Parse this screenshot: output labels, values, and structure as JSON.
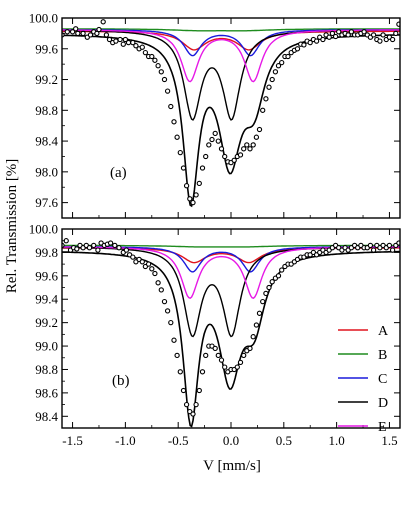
{
  "figure": {
    "ylabel": "Rel. Transmission [%]",
    "xlabel": "V [mm/s]"
  },
  "chart_data": [
    {
      "type": "line",
      "panel_label": "(a)",
      "xlim": [
        -1.6,
        1.6
      ],
      "ylim": [
        97.4,
        100.0
      ],
      "x_ticks": [
        -1.5,
        -1.0,
        -0.5,
        0.0,
        0.5,
        1.0,
        1.5
      ],
      "x_tick_labels": [
        "-1.5",
        "-1.0",
        "-0.5",
        "0.0",
        "0.5",
        "1.0",
        "1.5"
      ],
      "y_ticks": [
        97.6,
        98.0,
        98.4,
        98.8,
        99.2,
        99.6,
        100.0
      ],
      "y_tick_labels": [
        "97.6",
        "98.0",
        "98.4",
        "98.8",
        "99.2",
        "99.6",
        "100.0"
      ],
      "grid": false,
      "series": [
        {
          "name": "A",
          "color": "#e0141e",
          "baseline": 99.83,
          "doublet": {
            "center": -0.09,
            "split": 0.52,
            "depth": 0.23,
            "width": 0.27
          }
        },
        {
          "name": "B",
          "color": "#1f8c1f",
          "baseline": 99.86,
          "doublet": {
            "center": -0.09,
            "split": 0.45,
            "depth": 0.02,
            "width": 0.6
          }
        },
        {
          "name": "C",
          "color": "#1a1adc",
          "baseline": 99.85,
          "doublet": {
            "center": -0.09,
            "split": 0.55,
            "depth": 0.33,
            "width": 0.2
          }
        },
        {
          "name": "D",
          "color": "#000000",
          "baseline": 99.85,
          "doublet": {
            "center": -0.18,
            "split": 0.37,
            "depth": 1.1,
            "width": 0.2
          }
        },
        {
          "name": "E",
          "color": "#e619e6",
          "baseline": 99.85,
          "doublet": {
            "center": -0.09,
            "split": 0.6,
            "depth": 0.66,
            "width": 0.2
          }
        }
      ],
      "fit": {
        "name": "sum",
        "color": "#000000",
        "baseline": 99.8,
        "doublets": [
          {
            "center": -0.38,
            "split": 0,
            "depth": 2.05,
            "width": 0.18
          },
          {
            "center": -0.01,
            "split": 0,
            "depth": 1.55,
            "width": 0.26
          },
          {
            "center": 0.22,
            "split": 0,
            "depth": 0.75,
            "width": 0.24
          }
        ]
      },
      "data_points": [
        [
          -1.6,
          99.78
        ],
        [
          -1.55,
          99.82
        ],
        [
          -1.5,
          99.82
        ],
        [
          -1.47,
          99.86
        ],
        [
          -1.45,
          99.8
        ],
        [
          -1.4,
          99.8
        ],
        [
          -1.36,
          99.75
        ],
        [
          -1.33,
          99.78
        ],
        [
          -1.3,
          99.82
        ],
        [
          -1.27,
          99.8
        ],
        [
          -1.25,
          99.85
        ],
        [
          -1.21,
          99.95
        ],
        [
          -1.18,
          99.78
        ],
        [
          -1.15,
          99.72
        ],
        [
          -1.12,
          99.68
        ],
        [
          -1.09,
          99.7
        ],
        [
          -1.05,
          99.72
        ],
        [
          -1.02,
          99.66
        ],
        [
          -1.0,
          99.72
        ],
        [
          -0.97,
          99.68
        ],
        [
          -0.93,
          99.68
        ],
        [
          -0.9,
          99.64
        ],
        [
          -0.87,
          99.6
        ],
        [
          -0.84,
          99.62
        ],
        [
          -0.81,
          99.55
        ],
        [
          -0.78,
          99.5
        ],
        [
          -0.75,
          99.5
        ],
        [
          -0.72,
          99.45
        ],
        [
          -0.69,
          99.38
        ],
        [
          -0.66,
          99.3
        ],
        [
          -0.63,
          99.2
        ],
        [
          -0.6,
          99.05
        ],
        [
          -0.57,
          98.85
        ],
        [
          -0.54,
          98.65
        ],
        [
          -0.51,
          98.45
        ],
        [
          -0.48,
          98.25
        ],
        [
          -0.45,
          98.05
        ],
        [
          -0.42,
          97.82
        ],
        [
          -0.39,
          97.65
        ],
        [
          -0.36,
          97.6
        ],
        [
          -0.33,
          97.7
        ],
        [
          -0.3,
          97.85
        ],
        [
          -0.27,
          98.05
        ],
        [
          -0.24,
          98.2
        ],
        [
          -0.21,
          98.35
        ],
        [
          -0.18,
          98.42
        ],
        [
          -0.15,
          98.5
        ],
        [
          -0.12,
          98.4
        ],
        [
          -0.09,
          98.3
        ],
        [
          -0.06,
          98.2
        ],
        [
          -0.03,
          98.13
        ],
        [
          0.0,
          98.12
        ],
        [
          0.03,
          98.15
        ],
        [
          0.06,
          98.2
        ],
        [
          0.09,
          98.22
        ],
        [
          0.12,
          98.3
        ],
        [
          0.15,
          98.35
        ],
        [
          0.18,
          98.3
        ],
        [
          0.21,
          98.35
        ],
        [
          0.24,
          98.45
        ],
        [
          0.27,
          98.55
        ],
        [
          0.3,
          98.8
        ],
        [
          0.33,
          98.95
        ],
        [
          0.36,
          99.1
        ],
        [
          0.39,
          99.2
        ],
        [
          0.42,
          99.3
        ],
        [
          0.45,
          99.38
        ],
        [
          0.48,
          99.42
        ],
        [
          0.51,
          99.5
        ],
        [
          0.54,
          99.5
        ],
        [
          0.57,
          99.55
        ],
        [
          0.6,
          99.58
        ],
        [
          0.63,
          99.6
        ],
        [
          0.66,
          99.66
        ],
        [
          0.69,
          99.65
        ],
        [
          0.72,
          99.7
        ],
        [
          0.75,
          99.68
        ],
        [
          0.78,
          99.72
        ],
        [
          0.81,
          99.7
        ],
        [
          0.84,
          99.75
        ],
        [
          0.87,
          99.72
        ],
        [
          0.9,
          99.78
        ],
        [
          0.93,
          99.75
        ],
        [
          0.96,
          99.8
        ],
        [
          0.99,
          99.76
        ],
        [
          1.02,
          99.82
        ],
        [
          1.05,
          99.78
        ],
        [
          1.08,
          99.8
        ],
        [
          1.11,
          99.78
        ],
        [
          1.14,
          99.82
        ],
        [
          1.17,
          99.78
        ],
        [
          1.2,
          99.78
        ],
        [
          1.23,
          99.8
        ],
        [
          1.26,
          99.82
        ],
        [
          1.29,
          99.78
        ],
        [
          1.32,
          99.75
        ],
        [
          1.35,
          99.78
        ],
        [
          1.38,
          99.72
        ],
        [
          1.41,
          99.7
        ],
        [
          1.44,
          99.78
        ],
        [
          1.47,
          99.72
        ],
        [
          1.5,
          99.75
        ],
        [
          1.53,
          99.72
        ],
        [
          1.56,
          99.8
        ],
        [
          1.59,
          99.92
        ]
      ]
    },
    {
      "type": "line",
      "panel_label": "(b)",
      "xlim": [
        -1.6,
        1.6
      ],
      "ylim": [
        98.3,
        100.0
      ],
      "x_ticks": [
        -1.5,
        -1.0,
        -0.5,
        0.0,
        0.5,
        1.0,
        1.5
      ],
      "x_tick_labels": [
        "-1.5",
        "-1.0",
        "-0.5",
        "0.0",
        "0.5",
        "1.0",
        "1.5"
      ],
      "y_ticks": [
        98.4,
        98.6,
        98.8,
        99.0,
        99.2,
        99.4,
        99.6,
        99.8,
        100.0
      ],
      "y_tick_labels": [
        "98.4",
        "98.6",
        "98.8",
        "99.0",
        "99.2",
        "99.4",
        "99.6",
        "99.8",
        "100.0"
      ],
      "grid": false,
      "legend_position": "lower-right",
      "series": [
        {
          "name": "A",
          "color": "#e0141e",
          "baseline": 99.84,
          "doublet": {
            "center": -0.09,
            "split": 0.52,
            "depth": 0.12,
            "width": 0.27
          }
        },
        {
          "name": "B",
          "color": "#1f8c1f",
          "baseline": 99.86,
          "doublet": {
            "center": -0.09,
            "split": 0.45,
            "depth": 0.01,
            "width": 0.6
          }
        },
        {
          "name": "C",
          "color": "#1a1adc",
          "baseline": 99.85,
          "doublet": {
            "center": -0.09,
            "split": 0.55,
            "depth": 0.21,
            "width": 0.2
          }
        },
        {
          "name": "D",
          "color": "#000000",
          "baseline": 99.85,
          "doublet": {
            "center": -0.18,
            "split": 0.37,
            "depth": 0.72,
            "width": 0.2
          }
        },
        {
          "name": "E",
          "color": "#e619e6",
          "baseline": 99.85,
          "doublet": {
            "center": -0.09,
            "split": 0.6,
            "depth": 0.43,
            "width": 0.2
          }
        }
      ],
      "fit": {
        "name": "sum",
        "color": "#000000",
        "baseline": 99.82,
        "doublets": [
          {
            "center": -0.38,
            "split": 0,
            "depth": 1.38,
            "width": 0.18
          },
          {
            "center": -0.01,
            "split": 0,
            "depth": 1.0,
            "width": 0.26
          },
          {
            "center": 0.22,
            "split": 0,
            "depth": 0.52,
            "width": 0.24
          }
        ]
      },
      "data_points": [
        [
          -1.6,
          99.86
        ],
        [
          -1.56,
          99.9
        ],
        [
          -1.52,
          99.82
        ],
        [
          -1.49,
          99.84
        ],
        [
          -1.46,
          99.83
        ],
        [
          -1.43,
          99.86
        ],
        [
          -1.4,
          99.84
        ],
        [
          -1.37,
          99.86
        ],
        [
          -1.34,
          99.84
        ],
        [
          -1.3,
          99.86
        ],
        [
          -1.26,
          99.82
        ],
        [
          -1.23,
          99.88
        ],
        [
          -1.2,
          99.86
        ],
        [
          -1.17,
          99.87
        ],
        [
          -1.14,
          99.88
        ],
        [
          -1.1,
          99.86
        ],
        [
          -1.06,
          99.84
        ],
        [
          -1.02,
          99.8
        ],
        [
          -0.99,
          99.82
        ],
        [
          -0.96,
          99.78
        ],
        [
          -0.93,
          99.76
        ],
        [
          -0.9,
          99.72
        ],
        [
          -0.87,
          99.74
        ],
        [
          -0.84,
          99.72
        ],
        [
          -0.81,
          99.68
        ],
        [
          -0.78,
          99.7
        ],
        [
          -0.75,
          99.66
        ],
        [
          -0.72,
          99.62
        ],
        [
          -0.69,
          99.54
        ],
        [
          -0.66,
          99.48
        ],
        [
          -0.63,
          99.38
        ],
        [
          -0.6,
          99.3
        ],
        [
          -0.57,
          99.2
        ],
        [
          -0.54,
          99.05
        ],
        [
          -0.51,
          98.92
        ],
        [
          -0.48,
          98.78
        ],
        [
          -0.45,
          98.62
        ],
        [
          -0.42,
          98.5
        ],
        [
          -0.39,
          98.44
        ],
        [
          -0.36,
          98.42
        ],
        [
          -0.33,
          98.5
        ],
        [
          -0.3,
          98.62
        ],
        [
          -0.27,
          98.78
        ],
        [
          -0.24,
          98.92
        ],
        [
          -0.21,
          99.0
        ],
        [
          -0.18,
          99.0
        ],
        [
          -0.15,
          98.98
        ],
        [
          -0.12,
          98.92
        ],
        [
          -0.09,
          98.88
        ],
        [
          -0.06,
          98.82
        ],
        [
          -0.03,
          98.78
        ],
        [
          0.0,
          98.8
        ],
        [
          0.03,
          98.8
        ],
        [
          0.06,
          98.82
        ],
        [
          0.09,
          98.86
        ],
        [
          0.12,
          98.92
        ],
        [
          0.15,
          98.96
        ],
        [
          0.18,
          98.98
        ],
        [
          0.21,
          99.08
        ],
        [
          0.24,
          99.18
        ],
        [
          0.27,
          99.28
        ],
        [
          0.3,
          99.38
        ],
        [
          0.33,
          99.45
        ],
        [
          0.36,
          99.5
        ],
        [
          0.39,
          99.55
        ],
        [
          0.42,
          99.58
        ],
        [
          0.45,
          99.6
        ],
        [
          0.48,
          99.65
        ],
        [
          0.51,
          99.68
        ],
        [
          0.54,
          99.7
        ],
        [
          0.57,
          99.7
        ],
        [
          0.6,
          99.72
        ],
        [
          0.63,
          99.74
        ],
        [
          0.66,
          99.76
        ],
        [
          0.69,
          99.76
        ],
        [
          0.72,
          99.78
        ],
        [
          0.75,
          99.78
        ],
        [
          0.78,
          99.8
        ],
        [
          0.81,
          99.78
        ],
        [
          0.84,
          99.8
        ],
        [
          0.87,
          99.82
        ],
        [
          0.9,
          99.8
        ],
        [
          0.93,
          99.82
        ],
        [
          0.96,
          99.84
        ],
        [
          0.99,
          99.86
        ],
        [
          1.02,
          99.84
        ],
        [
          1.05,
          99.82
        ],
        [
          1.08,
          99.84
        ],
        [
          1.11,
          99.82
        ],
        [
          1.14,
          99.84
        ],
        [
          1.17,
          99.86
        ],
        [
          1.2,
          99.84
        ],
        [
          1.23,
          99.86
        ],
        [
          1.26,
          99.84
        ],
        [
          1.29,
          99.84
        ],
        [
          1.32,
          99.86
        ],
        [
          1.35,
          99.82
        ],
        [
          1.38,
          99.86
        ],
        [
          1.41,
          99.84
        ],
        [
          1.44,
          99.86
        ],
        [
          1.47,
          99.84
        ],
        [
          1.5,
          99.86
        ],
        [
          1.53,
          99.82
        ],
        [
          1.56,
          99.86
        ],
        [
          1.59,
          99.88
        ]
      ]
    }
  ]
}
